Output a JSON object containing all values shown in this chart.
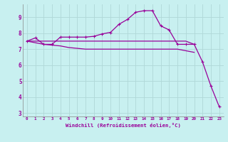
{
  "background_color": "#c8f0f0",
  "grid_color": "#b0d8d8",
  "line_color": "#990099",
  "x_labels": [
    "0",
    "1",
    "2",
    "3",
    "4",
    "5",
    "6",
    "7",
    "8",
    "9",
    "10",
    "11",
    "12",
    "13",
    "14",
    "15",
    "16",
    "17",
    "18",
    "19",
    "20",
    "21",
    "22",
    "23"
  ],
  "xlabel": "Windchill (Refroidissement éolien,°C)",
  "xlabel_color": "#990099",
  "ylim": [
    2.8,
    9.8
  ],
  "xlim": [
    -0.5,
    23.5
  ],
  "yticks": [
    3,
    4,
    5,
    6,
    7,
    8,
    9
  ],
  "line1_x": [
    0,
    1,
    2,
    3,
    4,
    5,
    6,
    7,
    8,
    9,
    10,
    11,
    12,
    13,
    14,
    15,
    16,
    17,
    18,
    19,
    20,
    21,
    22,
    23
  ],
  "line1_y": [
    7.5,
    7.7,
    7.3,
    7.3,
    7.75,
    7.75,
    7.75,
    7.75,
    7.8,
    7.95,
    8.05,
    8.55,
    8.85,
    9.3,
    9.4,
    9.4,
    8.45,
    8.2,
    7.3,
    7.3,
    7.3,
    6.2,
    4.7,
    3.4
  ],
  "line2_x": [
    0,
    1,
    2,
    3,
    4,
    5,
    6,
    7,
    8,
    9,
    10,
    11,
    12,
    13,
    14,
    15,
    16,
    17,
    18,
    19,
    20
  ],
  "line2_y": [
    7.5,
    7.5,
    7.5,
    7.5,
    7.5,
    7.5,
    7.5,
    7.5,
    7.5,
    7.5,
    7.5,
    7.5,
    7.5,
    7.5,
    7.5,
    7.5,
    7.5,
    7.5,
    7.5,
    7.5,
    7.3
  ],
  "line3_x": [
    0,
    1,
    2,
    3,
    4,
    5,
    6,
    7,
    8,
    9,
    10,
    11,
    12,
    13,
    14,
    15,
    16,
    17,
    18,
    19,
    20
  ],
  "line3_y": [
    7.5,
    7.4,
    7.3,
    7.25,
    7.2,
    7.1,
    7.05,
    7.0,
    7.0,
    7.0,
    7.0,
    7.0,
    7.0,
    7.0,
    7.0,
    7.0,
    7.0,
    7.0,
    7.0,
    6.9,
    6.8
  ],
  "marker": "+"
}
